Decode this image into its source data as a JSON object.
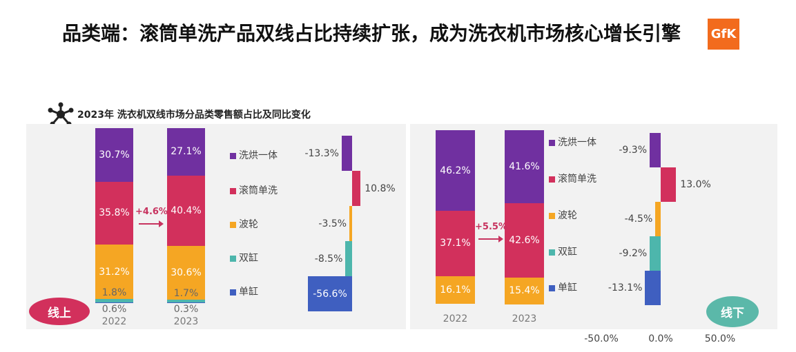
{
  "title": "品类端：滚筒单洗产品双线占比持续扩张，成为洗衣机市场核心增长引擎",
  "logo": "GfK",
  "chart_data": [
    {
      "type": "bar",
      "stacked": true,
      "title": "2023年 洗衣机双线市场分品类零售额占比及同比变化",
      "panel_label": "线上",
      "categories": [
        "2022",
        "2023"
      ],
      "series": [
        {
          "name": "洗烘一体",
          "values": [
            30.7,
            27.1
          ]
        },
        {
          "name": "滚筒单洗",
          "values": [
            35.8,
            40.4
          ]
        },
        {
          "name": "波轮",
          "values": [
            31.2,
            30.6
          ]
        },
        {
          "name": "双缸",
          "values": [
            1.8,
            1.7
          ]
        },
        {
          "name": "单缸",
          "values": [
            0.6,
            0.3
          ]
        }
      ],
      "share_change": "+4.6%",
      "yoy": {
        "type": "bar",
        "orientation": "horizontal",
        "categories": [
          "洗烘一体",
          "滚筒单洗",
          "波轮",
          "双缸",
          "单缸"
        ],
        "values": [
          -13.3,
          10.8,
          -3.5,
          -8.5,
          -56.6
        ]
      }
    },
    {
      "type": "bar",
      "stacked": true,
      "panel_label": "线下",
      "categories": [
        "2022",
        "2023"
      ],
      "series": [
        {
          "name": "洗烘一体",
          "values": [
            46.2,
            41.6
          ]
        },
        {
          "name": "滚筒单洗",
          "values": [
            37.1,
            42.6
          ]
        },
        {
          "name": "波轮",
          "values": [
            16.1,
            15.4
          ]
        }
      ],
      "share_change": "+5.5%",
      "yoy": {
        "type": "bar",
        "orientation": "horizontal",
        "categories": [
          "洗烘一体",
          "滚筒单洗",
          "波轮",
          "双缸",
          "单缸"
        ],
        "values": [
          -9.3,
          13.0,
          -4.5,
          -9.2,
          -13.1
        ],
        "xticks": [
          "-50.0%",
          "0.0%",
          "50.0%"
        ]
      }
    }
  ],
  "colors": {
    "洗烘一体": "#7030a0",
    "滚筒单洗": "#d2305c",
    "波轮": "#f5a623",
    "双缸": "#4db6ac",
    "单缸": "#3f5fc0",
    "online_pill": "#d2305c",
    "offline_pill": "#5bb8a9"
  }
}
